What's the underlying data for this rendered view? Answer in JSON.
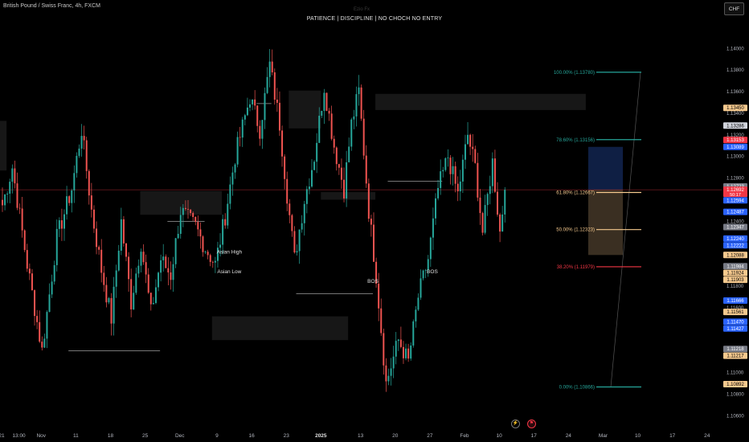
{
  "symbol": {
    "title": "British Pound / Swiss Franc, 4h, FXCM",
    "watermark": "Ezio Fx",
    "note": "PATIENCE  |  DISCIPLINE  |  NO CHOCH NO ENTRY",
    "currency": "CHF"
  },
  "icons": [
    {
      "name": "lightning-icon",
      "glyph": "⚡",
      "color": "#9e9e9e"
    },
    {
      "name": "event-flag-icon",
      "glyph": "⚑",
      "color": "#f23645"
    }
  ],
  "chart_data": {
    "type": "candlestick",
    "title": "British Pound / Swiss Franc, 4h, FXCM",
    "timeframe": "4h",
    "ylim": [
      1.1055,
      1.143
    ],
    "yticks": [
      1.14,
      1.138,
      1.136,
      1.134,
      1.132,
      1.13,
      1.128,
      1.124,
      1.118,
      1.116,
      1.114,
      1.11,
      1.108,
      1.106
    ],
    "xaxis": {
      "labels": [
        "21",
        "13:00",
        "Nov",
        "11",
        "18",
        "25",
        "Dec",
        "9",
        "16",
        "23",
        "2025",
        "13",
        "20",
        "27",
        "Feb",
        "10",
        "17",
        "24",
        "Mar",
        "10",
        "17",
        "24"
      ],
      "positions": [
        0,
        7,
        16,
        30,
        44,
        58,
        72,
        87,
        101,
        115,
        129,
        145,
        159,
        173,
        187,
        201,
        215,
        229,
        243,
        257,
        271,
        285
      ]
    },
    "current_price": 1.12692,
    "current_countdown": "50:17",
    "candle_count": 204,
    "pivots": [
      [
        0,
        1.1255
      ],
      [
        4,
        1.129
      ],
      [
        10,
        1.12
      ],
      [
        16,
        1.112
      ],
      [
        22,
        1.1225
      ],
      [
        28,
        1.127
      ],
      [
        32,
        1.1325
      ],
      [
        36,
        1.125
      ],
      [
        40,
        1.1195
      ],
      [
        44,
        1.115
      ],
      [
        48,
        1.124
      ],
      [
        52,
        1.1165
      ],
      [
        56,
        1.122
      ],
      [
        60,
        1.1155
      ],
      [
        64,
        1.1205
      ],
      [
        68,
        1.119
      ],
      [
        72,
        1.125
      ],
      [
        78,
        1.1235
      ],
      [
        82,
        1.1215
      ],
      [
        86,
        1.12
      ],
      [
        90,
        1.1245
      ],
      [
        94,
        1.13
      ],
      [
        100,
        1.1355
      ],
      [
        104,
        1.1325
      ],
      [
        108,
        1.1385
      ],
      [
        112,
        1.133
      ],
      [
        115,
        1.1265
      ],
      [
        118,
        1.1205
      ],
      [
        122,
        1.126
      ],
      [
        126,
        1.13
      ],
      [
        130,
        1.1365
      ],
      [
        134,
        1.131
      ],
      [
        138,
        1.127
      ],
      [
        141,
        1.133
      ],
      [
        144,
        1.136
      ],
      [
        148,
        1.125
      ],
      [
        151,
        1.119
      ],
      [
        155,
        1.109
      ],
      [
        160,
        1.113
      ],
      [
        164,
        1.111
      ],
      [
        168,
        1.117
      ],
      [
        172,
        1.1205
      ],
      [
        176,
        1.127
      ],
      [
        180,
        1.13
      ],
      [
        184,
        1.1265
      ],
      [
        188,
        1.132
      ],
      [
        191,
        1.129
      ],
      [
        194,
        1.123
      ],
      [
        198,
        1.1295
      ],
      [
        201,
        1.123
      ],
      [
        203,
        1.12692
      ]
    ],
    "levels": [
      {
        "price": 1.1345,
        "label": "1.13450",
        "bg": "#f5c98e",
        "fg": "#000"
      },
      {
        "price": 1.13286,
        "label": "1.13286",
        "bg": "#d1d4dc",
        "fg": "#000"
      },
      {
        "price": 1.13153,
        "label": "1.13153",
        "bg": "#f23645",
        "fg": "#fff"
      },
      {
        "price": 1.13089,
        "label": "1.13089",
        "bg": "#2962ff",
        "fg": "#fff"
      },
      {
        "price": 1.12723,
        "label": "1.12723",
        "bg": "#787b86",
        "fg": "#fff"
      },
      {
        "price": 1.12594,
        "label": "1.12594",
        "bg": "#2962ff",
        "fg": "#fff"
      },
      {
        "price": 1.12487,
        "label": "1.12487",
        "bg": "#2962ff",
        "fg": "#fff"
      },
      {
        "price": 1.12347,
        "label": "1.12347",
        "bg": "#787b86",
        "fg": "#fff"
      },
      {
        "price": 1.1224,
        "label": "1.12240",
        "bg": "#2962ff",
        "fg": "#fff"
      },
      {
        "price": 1.12222,
        "label": "1.12222",
        "bg": "#2962ff",
        "fg": "#fff"
      },
      {
        "price": 1.12088,
        "label": "1.12088",
        "bg": "#f5c98e",
        "fg": "#000"
      },
      {
        "price": 1.11984,
        "label": "1.11984",
        "bg": "#787b86",
        "fg": "#fff"
      },
      {
        "price": 1.11924,
        "label": "1.11924",
        "bg": "#f5c98e",
        "fg": "#000"
      },
      {
        "price": 1.11903,
        "label": "1.11903",
        "bg": "#f5c98e",
        "fg": "#000"
      },
      {
        "price": 1.11666,
        "label": "1.11666",
        "bg": "#2962ff",
        "fg": "#fff"
      },
      {
        "price": 1.11561,
        "label": "1.11561",
        "bg": "#f5c98e",
        "fg": "#000"
      },
      {
        "price": 1.1147,
        "label": "1.11470",
        "bg": "#2962ff",
        "fg": "#fff"
      },
      {
        "price": 1.11427,
        "label": "1.11427",
        "bg": "#2962ff",
        "fg": "#fff"
      },
      {
        "price": 1.11218,
        "label": "1.11218",
        "bg": "#787b86",
        "fg": "#fff"
      },
      {
        "price": 1.11217,
        "label": "1.11217",
        "bg": "#f5c98e",
        "fg": "#000"
      },
      {
        "price": 1.10892,
        "label": "1.10892",
        "bg": "#f5c98e",
        "fg": "#000"
      }
    ],
    "fibonacci": [
      {
        "ratio": "100.00%",
        "price": 1.1378,
        "label": "100.00% (1.13780)",
        "color": "#26a69a"
      },
      {
        "ratio": "78.60%",
        "price": 1.13156,
        "label": "78.60% (1.13156)",
        "color": "#26a69a"
      },
      {
        "ratio": "61.80%",
        "price": 1.12667,
        "label": "61.80% (1.12667)",
        "color": "#f5c98e"
      },
      {
        "ratio": "50.00%",
        "price": 1.12323,
        "label": "50.00% (1.12323)",
        "color": "#f5c98e"
      },
      {
        "ratio": "38.20%",
        "price": 1.11979,
        "label": "38.20% (1.11979)",
        "color": "#f23645"
      },
      {
        "ratio": "0.00%",
        "price": 1.10866,
        "label": "0.00% (1.10866)",
        "color": "#26a69a"
      }
    ],
    "zones": [
      {
        "x1": -2,
        "x2": 2,
        "top": 1.1333,
        "bottom": 1.1287
      },
      {
        "x1": 56,
        "x2": 89,
        "top": 1.1268,
        "bottom": 1.1246
      },
      {
        "x1": 85,
        "x2": 140,
        "top": 1.1152,
        "bottom": 1.113
      },
      {
        "x1": 116,
        "x2": 129,
        "top": 1.1361,
        "bottom": 1.1326
      },
      {
        "x1": 129,
        "x2": 151,
        "top": 1.1267,
        "bottom": 1.126
      },
      {
        "x1": 151,
        "x2": 236,
        "top": 1.1358,
        "bottom": 1.1343
      }
    ],
    "annotations": [
      {
        "text": "Asian High",
        "x": 92,
        "price": 1.121
      },
      {
        "text": "Asian Low",
        "x": 92,
        "price": 1.1192
      },
      {
        "text": "BOS",
        "x": 150,
        "price": 1.1183
      },
      {
        "text": "BOS",
        "x": 174,
        "price": 1.1192
      }
    ],
    "position": {
      "x1": 237,
      "x2": 251,
      "entry": 1.12692,
      "target": 1.13089,
      "stop": 1.12088
    }
  }
}
